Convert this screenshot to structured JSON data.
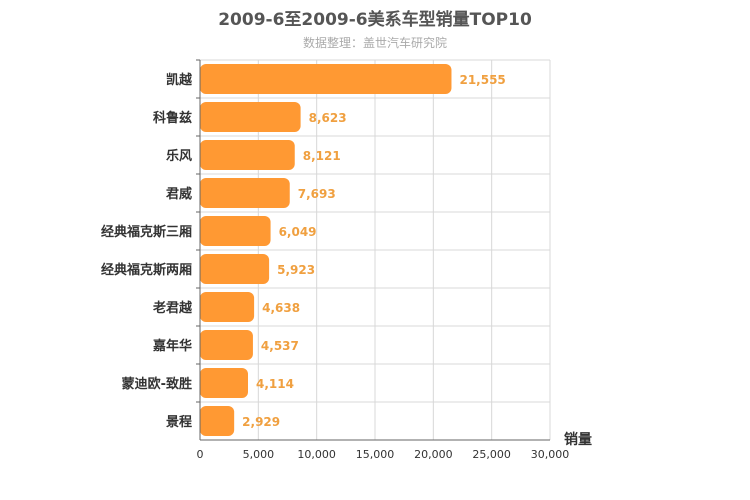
{
  "title": "2009-6至2009-6美系车型销量TOP10",
  "subtitle": "数据整理：盖世汽车研究院",
  "chart_data": {
    "type": "bar",
    "orientation": "horizontal",
    "title": "2009-6至2009-6美系车型销量TOP10",
    "subtitle": "数据整理：盖世汽车研究院",
    "xlabel": "销量",
    "ylabel": "",
    "xlim": [
      0,
      30000
    ],
    "xticks": [
      0,
      5000,
      10000,
      15000,
      20000,
      25000,
      30000
    ],
    "xtick_labels": [
      "0",
      "5,000",
      "10,000",
      "15,000",
      "20,000",
      "25,000",
      "30,000"
    ],
    "grid": true,
    "bar_color": "#ff9933",
    "label_color": "#f0a040",
    "categories": [
      "凯越",
      "科鲁兹",
      "乐风",
      "君威",
      "经典福克斯三厢",
      "经典福克斯两厢",
      "老君越",
      "嘉年华",
      "蒙迪欧-致胜",
      "景程"
    ],
    "values": [
      21555,
      8623,
      8121,
      7693,
      6049,
      5923,
      4638,
      4537,
      4114,
      2929
    ],
    "value_labels": [
      "21,555",
      "8,623",
      "8,121",
      "7,693",
      "6,049",
      "5,923",
      "4,638",
      "4,537",
      "4,114",
      "2,929"
    ]
  }
}
